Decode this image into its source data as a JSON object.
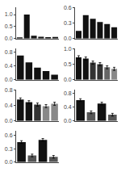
{
  "chart_data": [
    {
      "type": "bar",
      "categories": [
        null,
        null,
        null,
        null,
        null,
        null
      ],
      "values": [
        0.05,
        1.0,
        0.12,
        0.08,
        0.06,
        0.07
      ],
      "color": "#111111",
      "ylim": [
        0,
        1.3
      ],
      "yticks": [
        {
          "value": 0,
          "label": "0.0"
        },
        0.5,
        {
          "value": 1.0,
          "label": "1.0"
        }
      ],
      "grid": false,
      "tick_labels": "y"
    },
    {
      "type": "bar",
      "categories": [
        null,
        null,
        null,
        null,
        null,
        null
      ],
      "values": [
        0.15,
        0.45,
        0.38,
        0.32,
        0.28,
        0.22
      ],
      "color": "#111111",
      "ylim": [
        0,
        0.6
      ],
      "yticks": [
        {
          "value": 0,
          "label": "0.0"
        },
        0.3,
        0.6
      ],
      "grid": false,
      "tick_labels": "y"
    },
    {
      "type": "bar",
      "categories": [
        null,
        null,
        null,
        null,
        null
      ],
      "values": [
        0.7,
        0.5,
        0.35,
        0.25,
        0.15
      ],
      "color": "#111111",
      "ylim": [
        0,
        0.9
      ],
      "yticks": [
        {
          "value": 0,
          "label": "0.0"
        },
        0.4,
        0.8
      ],
      "grid": false,
      "tick_labels": "y"
    },
    {
      "type": "bar",
      "categories": [
        null,
        null,
        null,
        null,
        null,
        null
      ],
      "values": [
        0.72,
        0.68,
        0.55,
        0.5,
        0.4,
        0.35
      ],
      "errors": [
        0.05,
        0.05,
        0.05,
        0.05,
        0.05,
        0.05
      ],
      "colors": [
        "#111111",
        "#111111",
        "#333333",
        "#333333",
        "#666666",
        "#888888"
      ],
      "ylim": [
        0,
        1.0
      ],
      "yticks": [
        {
          "value": 0,
          "label": "0.0"
        },
        0.5,
        {
          "value": 1.0,
          "label": "1.0"
        }
      ],
      "grid": false,
      "tick_labels": "y"
    },
    {
      "type": "bar",
      "categories": [
        null,
        null,
        null,
        null,
        null
      ],
      "values": [
        0.55,
        0.48,
        0.42,
        0.38,
        0.44
      ],
      "errors": [
        0.04,
        0.04,
        0.04,
        0.04,
        0.04
      ],
      "colors": [
        "#111111",
        "#111111",
        "#333333",
        "#888888",
        "#888888"
      ],
      "ylim": [
        0,
        0.8
      ],
      "yticks": [
        {
          "value": 0,
          "label": "0.0"
        },
        0.4,
        0.8
      ],
      "grid": false,
      "tick_labels": "y"
    },
    {
      "type": "bar",
      "categories": [
        null,
        null,
        null,
        null
      ],
      "values": [
        0.6,
        0.25,
        0.5,
        0.18
      ],
      "errors": [
        0.04,
        0.04,
        0.04,
        0.04
      ],
      "colors": [
        "#111111",
        "#555555",
        "#111111",
        "#555555"
      ],
      "ylim": [
        0,
        0.9
      ],
      "yticks": [
        {
          "value": 0,
          "label": "0.0"
        },
        0.4,
        0.8
      ],
      "grid": false,
      "tick_labels": "y"
    },
    {
      "type": "bar",
      "categories": [
        null,
        null,
        null,
        null
      ],
      "values": [
        0.45,
        0.15,
        0.5,
        0.12
      ],
      "errors": [
        0.03,
        0.03,
        0.03,
        0.03
      ],
      "colors": [
        "#111111",
        "#555555",
        "#111111",
        "#555555"
      ],
      "ylim": [
        0,
        0.7
      ],
      "yticks": [
        {
          "value": 0,
          "label": "0.0"
        },
        0.3,
        0.6
      ],
      "grid": false,
      "tick_labels": "y"
    }
  ]
}
